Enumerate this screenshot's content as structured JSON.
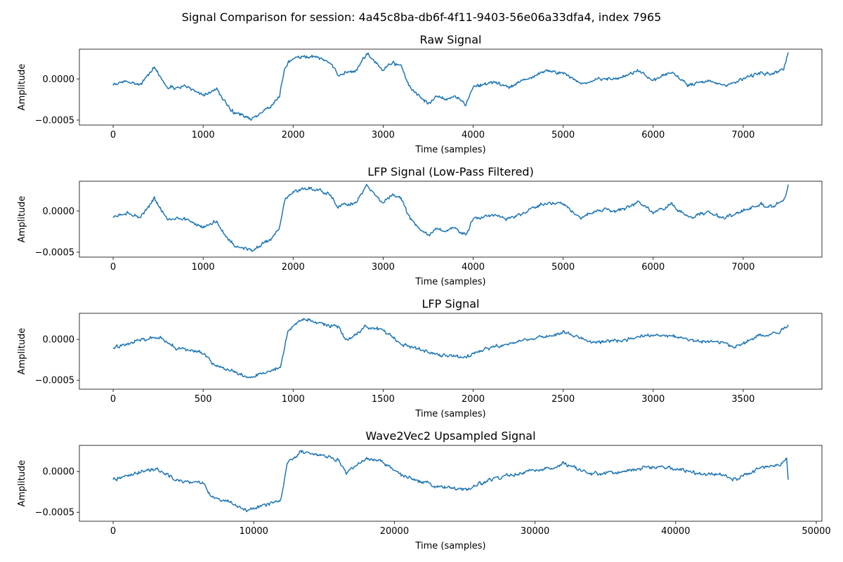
{
  "figure": {
    "suptitle": "Signal Comparison for session: 4a45c8ba-db6f-4f11-9403-56e06a33dfa4, index 7965",
    "line_color": "#1f77b4"
  },
  "chart_data": [
    {
      "type": "line",
      "title": "Raw Signal",
      "xlabel": "Time (samples)",
      "ylabel": "Amplitude",
      "xlim": [
        -375,
        7875
      ],
      "ylim": [
        -0.00056,
        0.00036
      ],
      "xticks": [
        0,
        1000,
        2000,
        3000,
        4000,
        5000,
        6000,
        7000
      ],
      "xtick_labels": [
        "0",
        "1000",
        "2000",
        "3000",
        "4000",
        "5000",
        "6000",
        "7000"
      ],
      "yticks": [
        0.0,
        -0.0005
      ],
      "ytick_labels": [
        "0.0000",
        "−0.0005"
      ],
      "grid": false,
      "series": [
        {
          "x": [
            0,
            150,
            300,
            460,
            600,
            800,
            1000,
            1150,
            1250,
            1350,
            1450,
            1550,
            1650,
            1750,
            1850,
            1900,
            1950,
            2050,
            2200,
            2300,
            2400,
            2500,
            2600,
            2700,
            2820,
            2900,
            3000,
            3100,
            3200,
            3300,
            3400,
            3500,
            3600,
            3700,
            3800,
            3920,
            4000,
            4200,
            4400,
            4600,
            4800,
            5000,
            5200,
            5400,
            5600,
            5850,
            6000,
            6200,
            6400,
            6600,
            6800,
            7000,
            7200,
            7300,
            7400,
            7450,
            7500
          ],
          "y": [
            -8e-05,
            -2e-05,
            -8e-05,
            0.00015,
            -0.0001,
            -0.0001,
            -0.0002,
            -0.00012,
            -0.0003,
            -0.00042,
            -0.00045,
            -0.00048,
            -0.0004,
            -0.00035,
            -0.0002,
            0.0001,
            0.0002,
            0.00025,
            0.00028,
            0.00025,
            0.0002,
            5e-05,
            8e-05,
            0.0001,
            0.00032,
            0.0002,
            0.0001,
            0.0002,
            0.00015,
            -0.0001,
            -0.0002,
            -0.0003,
            -0.0002,
            -0.00025,
            -0.0002,
            -0.0003,
            -0.0001,
            -5e-05,
            -0.0001,
            0.0,
            0.0001,
            8e-05,
            -8e-05,
            0.0,
            0.0,
            0.0001,
            -2e-05,
            8e-05,
            -8e-05,
            -2e-05,
            -8e-05,
            0.0,
            8e-05,
            5e-05,
            0.0001,
            0.00012,
            0.00032
          ]
        }
      ]
    },
    {
      "type": "line",
      "title": "LFP Signal (Low-Pass Filtered)",
      "xlabel": "Time (samples)",
      "ylabel": "Amplitude",
      "xlim": [
        -375,
        7875
      ],
      "ylim": [
        -0.00056,
        0.00036
      ],
      "xticks": [
        0,
        1000,
        2000,
        3000,
        4000,
        5000,
        6000,
        7000
      ],
      "xtick_labels": [
        "0",
        "1000",
        "2000",
        "3000",
        "4000",
        "5000",
        "6000",
        "7000"
      ],
      "yticks": [
        0.0,
        -0.0005
      ],
      "ytick_labels": [
        "0.0000",
        "−0.0005"
      ],
      "grid": false,
      "series": [
        {
          "x": [
            0,
            150,
            300,
            460,
            600,
            800,
            1000,
            1150,
            1250,
            1350,
            1450,
            1550,
            1650,
            1750,
            1850,
            1900,
            1950,
            2050,
            2200,
            2300,
            2400,
            2500,
            2600,
            2700,
            2820,
            2900,
            3000,
            3100,
            3200,
            3300,
            3400,
            3500,
            3600,
            3700,
            3800,
            3920,
            4000,
            4200,
            4400,
            4600,
            4800,
            5000,
            5200,
            5400,
            5600,
            5850,
            6000,
            6200,
            6400,
            6600,
            6800,
            7000,
            7200,
            7300,
            7400,
            7450,
            7500
          ],
          "y": [
            -8e-05,
            -2e-05,
            -8e-05,
            0.00015,
            -0.0001,
            -0.0001,
            -0.0002,
            -0.00012,
            -0.0003,
            -0.00042,
            -0.00045,
            -0.00048,
            -0.0004,
            -0.00035,
            -0.0002,
            0.0001,
            0.0002,
            0.00025,
            0.00028,
            0.00025,
            0.0002,
            5e-05,
            8e-05,
            0.0001,
            0.00032,
            0.0002,
            0.0001,
            0.0002,
            0.00015,
            -0.0001,
            -0.0002,
            -0.0003,
            -0.0002,
            -0.00025,
            -0.0002,
            -0.0003,
            -0.0001,
            -5e-05,
            -0.0001,
            0.0,
            0.0001,
            8e-05,
            -8e-05,
            0.0,
            0.0,
            0.0001,
            -2e-05,
            8e-05,
            -8e-05,
            -2e-05,
            -8e-05,
            0.0,
            8e-05,
            5e-05,
            0.0001,
            0.00012,
            0.00032
          ]
        }
      ]
    },
    {
      "type": "line",
      "title": "LFP Signal",
      "xlabel": "Time (samples)",
      "ylabel": "Amplitude",
      "xlim": [
        -187.5,
        3937.5
      ],
      "ylim": [
        -0.00061,
        0.00032
      ],
      "xticks": [
        0,
        500,
        1000,
        1500,
        2000,
        2500,
        3000,
        3500
      ],
      "xtick_labels": [
        "0",
        "500",
        "1000",
        "1500",
        "2000",
        "2500",
        "3000",
        "3500"
      ],
      "yticks": [
        0.0,
        -0.0005
      ],
      "ytick_labels": [
        "0.0000",
        "−0.0005"
      ],
      "grid": false,
      "series": [
        {
          "x": [
            0,
            100,
            250,
            350,
            500,
            550,
            650,
            750,
            850,
            930,
            970,
            1050,
            1150,
            1250,
            1300,
            1400,
            1500,
            1600,
            1700,
            1800,
            1950,
            2100,
            2200,
            2300,
            2450,
            2500,
            2650,
            2800,
            2950,
            3100,
            3250,
            3400,
            3450,
            3600,
            3700,
            3750
          ],
          "y": [
            -0.0001,
            -3e-05,
            3e-05,
            -0.0001,
            -0.00015,
            -0.0003,
            -0.00038,
            -0.00048,
            -0.0004,
            -0.00035,
            0.0001,
            0.00025,
            0.0002,
            0.00015,
            -2e-05,
            0.00015,
            0.00012,
            -5e-05,
            -0.00012,
            -0.00018,
            -0.00022,
            -0.0001,
            -5e-05,
            0.0,
            5e-05,
            0.0001,
            -3e-05,
            -2e-05,
            5e-05,
            5e-05,
            -2e-05,
            -5e-05,
            -0.0001,
            5e-05,
            8e-05,
            0.00018
          ]
        }
      ]
    },
    {
      "type": "line",
      "title": "Wave2Vec2 Upsampled Signal",
      "xlabel": "Time (samples)",
      "ylabel": "Amplitude",
      "xlim": [
        -2400,
        50400
      ],
      "ylim": [
        -0.00061,
        0.00032
      ],
      "xticks": [
        0,
        10000,
        20000,
        30000,
        40000,
        50000
      ],
      "xtick_labels": [
        "0",
        "10000",
        "20000",
        "30000",
        "40000",
        "50000"
      ],
      "yticks": [
        0.0,
        -0.0005
      ],
      "ytick_labels": [
        "0.0000",
        "−0.0005"
      ],
      "grid": false,
      "series": [
        {
          "x": [
            0,
            1300,
            3200,
            4500,
            6400,
            7000,
            8300,
            9600,
            10900,
            11900,
            12400,
            13400,
            14700,
            16000,
            16600,
            17900,
            19200,
            20500,
            21800,
            23000,
            25000,
            26900,
            28200,
            29400,
            31400,
            32000,
            33900,
            35800,
            37800,
            39700,
            41600,
            43500,
            44200,
            46100,
            47400,
            47900,
            48000
          ],
          "y": [
            -0.0001,
            -3e-05,
            3e-05,
            -0.0001,
            -0.00015,
            -0.0003,
            -0.00038,
            -0.00048,
            -0.0004,
            -0.00035,
            0.0001,
            0.00025,
            0.0002,
            0.00015,
            -2e-05,
            0.00015,
            0.00012,
            -5e-05,
            -0.00012,
            -0.00018,
            -0.00022,
            -0.0001,
            -5e-05,
            0.0,
            5e-05,
            0.0001,
            -3e-05,
            -2e-05,
            5e-05,
            5e-05,
            -2e-05,
            -5e-05,
            -0.0001,
            5e-05,
            8e-05,
            0.00018,
            -0.0001
          ]
        }
      ]
    }
  ]
}
